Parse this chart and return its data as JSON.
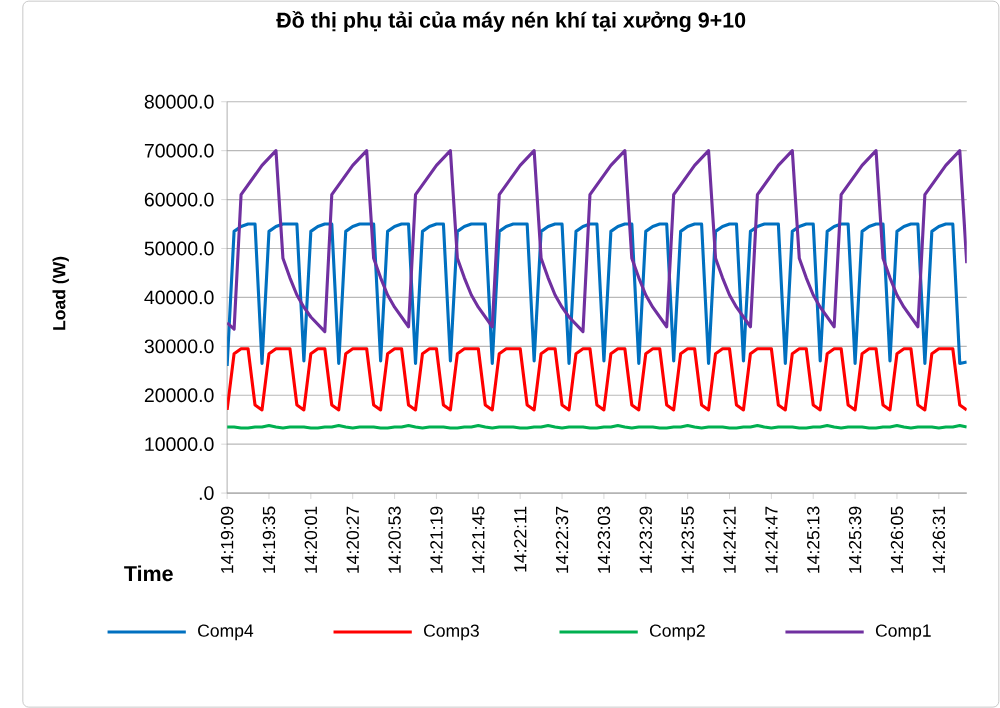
{
  "chart_data": {
    "type": "line",
    "title": "Đồ thị phụ tải của máy nén khí tại xưởng 9+10",
    "xlabel": "Time",
    "ylabel": "Load  (W)",
    "categories": [
      "14:19:09",
      null,
      null,
      null,
      null,
      null,
      "14:19:35",
      null,
      null,
      null,
      null,
      null,
      "14:20:01",
      null,
      null,
      null,
      null,
      null,
      "14:20:27",
      null,
      null,
      null,
      null,
      null,
      "14:20:53",
      null,
      null,
      null,
      null,
      null,
      "14:21:19",
      null,
      null,
      null,
      null,
      null,
      "14:21:45",
      null,
      null,
      null,
      null,
      null,
      "14:22:11",
      null,
      null,
      null,
      null,
      null,
      "14:22:37",
      null,
      null,
      null,
      null,
      null,
      "14:23:03",
      null,
      null,
      null,
      null,
      null,
      "14:23:29",
      null,
      null,
      null,
      null,
      null,
      "14:23:55",
      null,
      null,
      null,
      null,
      null,
      "14:24:21",
      null,
      null,
      null,
      null,
      null,
      "14:24:47",
      null,
      null,
      null,
      null,
      null,
      "14:25:13",
      null,
      null,
      null,
      null,
      null,
      "14:25:39",
      null,
      null,
      null,
      null,
      null,
      "14:26:05",
      null,
      null,
      null,
      null,
      null,
      "14:26:31",
      null,
      null,
      null,
      null
    ],
    "series": [
      {
        "name": "Comp4",
        "color": "#0070c0",
        "values": [
          26000,
          53500,
          54500,
          55000,
          55000,
          26500,
          53500,
          54500,
          55000,
          55000,
          55000,
          27000,
          53500,
          54500,
          55000,
          55000,
          26500,
          53500,
          54500,
          55000,
          55000,
          55000,
          27000,
          53500,
          54500,
          55000,
          55000,
          26500,
          53500,
          54500,
          55000,
          55000,
          27000,
          53500,
          54500,
          55000,
          55000,
          55000,
          26500,
          53500,
          54500,
          55000,
          55000,
          55000,
          27000,
          53500,
          54500,
          55000,
          55000,
          26500,
          53500,
          54500,
          55000,
          55000,
          27000,
          53500,
          54500,
          55000,
          55000,
          26500,
          53500,
          54500,
          55000,
          55000,
          27000,
          53500,
          54500,
          55000,
          55000,
          26500,
          53500,
          54500,
          55000,
          55000,
          27000,
          53500,
          54500,
          55000,
          55000,
          55000,
          26500,
          53500,
          54500,
          55000,
          55000,
          27000,
          53500,
          54500,
          55000,
          55000,
          26500,
          53500,
          54500,
          55000,
          55000,
          27000,
          53500,
          54500,
          55000,
          55000,
          26500,
          53500,
          54500,
          55000,
          55000,
          26500,
          26800
        ]
      },
      {
        "name": "Comp3",
        "color": "#ff0000",
        "values": [
          17000,
          28500,
          29500,
          29500,
          18000,
          17000,
          28500,
          29500,
          29500,
          29500,
          18000,
          17000,
          28500,
          29500,
          29500,
          18000,
          17000,
          28500,
          29500,
          29500,
          29500,
          18000,
          17000,
          28500,
          29500,
          29500,
          18000,
          17000,
          28500,
          29500,
          29500,
          18000,
          17000,
          28500,
          29500,
          29500,
          29500,
          18000,
          17000,
          28500,
          29500,
          29500,
          29500,
          18000,
          17000,
          28500,
          29500,
          29500,
          18000,
          17000,
          28500,
          29500,
          29500,
          18000,
          17000,
          28500,
          29500,
          29500,
          18000,
          17000,
          28500,
          29500,
          29500,
          18000,
          17000,
          28500,
          29500,
          29500,
          18000,
          17000,
          28500,
          29500,
          29500,
          18000,
          17000,
          28500,
          29500,
          29500,
          29500,
          18000,
          17000,
          28500,
          29500,
          29500,
          18000,
          17000,
          28500,
          29500,
          29500,
          18000,
          17000,
          28500,
          29500,
          29500,
          18000,
          17000,
          28500,
          29500,
          29500,
          18000,
          17000,
          28500,
          29500,
          29500,
          29500,
          18000,
          17000
        ]
      },
      {
        "name": "Comp2",
        "color": "#00b050",
        "values": [
          13500,
          13500,
          13300,
          13300,
          13500,
          13500,
          13800,
          13500,
          13300,
          13500,
          13500,
          13500,
          13300,
          13300,
          13500,
          13500,
          13800,
          13500,
          13300,
          13500,
          13500,
          13500,
          13300,
          13300,
          13500,
          13500,
          13800,
          13500,
          13300,
          13500,
          13500,
          13500,
          13300,
          13300,
          13500,
          13500,
          13800,
          13500,
          13300,
          13500,
          13500,
          13500,
          13300,
          13300,
          13500,
          13500,
          13800,
          13500,
          13300,
          13500,
          13500,
          13500,
          13300,
          13300,
          13500,
          13500,
          13800,
          13500,
          13300,
          13500,
          13500,
          13500,
          13300,
          13300,
          13500,
          13500,
          13800,
          13500,
          13300,
          13500,
          13500,
          13500,
          13300,
          13300,
          13500,
          13500,
          13800,
          13500,
          13300,
          13500,
          13500,
          13500,
          13300,
          13300,
          13500,
          13500,
          13800,
          13500,
          13300,
          13500,
          13500,
          13500,
          13300,
          13300,
          13500,
          13500,
          13800,
          13500,
          13300,
          13500,
          13500,
          13500,
          13300,
          13500,
          13500,
          13800,
          13500
        ]
      },
      {
        "name": "Comp1",
        "color": "#7030a0",
        "values": [
          34800,
          33500,
          61000,
          63000,
          65000,
          67000,
          68500,
          70000,
          48000,
          44000,
          40500,
          38000,
          36000,
          34500,
          33000,
          61000,
          63000,
          65000,
          67000,
          68500,
          70000,
          48000,
          44000,
          40500,
          38000,
          36000,
          34000,
          61000,
          63000,
          65000,
          67000,
          68500,
          70000,
          48000,
          44000,
          40500,
          38000,
          36000,
          34000,
          61000,
          63000,
          65000,
          67000,
          68500,
          70000,
          48000,
          44000,
          40500,
          38000,
          36000,
          34500,
          33000,
          61000,
          63000,
          65000,
          67000,
          68500,
          70000,
          48000,
          44000,
          40500,
          38000,
          36000,
          34000,
          61000,
          63000,
          65000,
          67000,
          68500,
          70000,
          48000,
          44000,
          40500,
          38000,
          36000,
          34000,
          61000,
          63000,
          65000,
          67000,
          68500,
          70000,
          48000,
          44000,
          40500,
          38000,
          36000,
          34000,
          61000,
          63000,
          65000,
          67000,
          68500,
          70000,
          48000,
          44000,
          40500,
          38000,
          36000,
          34000,
          61000,
          63000,
          65000,
          67000,
          68500,
          70000,
          47000
        ]
      }
    ],
    "ylim": [
      0,
      80000
    ],
    "yticks": [
      {
        "value": 0,
        "label": ".0"
      },
      {
        "value": 10000,
        "label": "10000.0"
      },
      {
        "value": 20000,
        "label": "20000.0"
      },
      {
        "value": 30000,
        "label": "30000.0"
      },
      {
        "value": 40000,
        "label": "40000.0"
      },
      {
        "value": 50000,
        "label": "50000.0"
      },
      {
        "value": 60000,
        "label": "60000.0"
      },
      {
        "value": 70000,
        "label": "70000.0"
      },
      {
        "value": 80000,
        "label": "80000.0"
      }
    ],
    "grid": "y",
    "legend": "bottom"
  }
}
